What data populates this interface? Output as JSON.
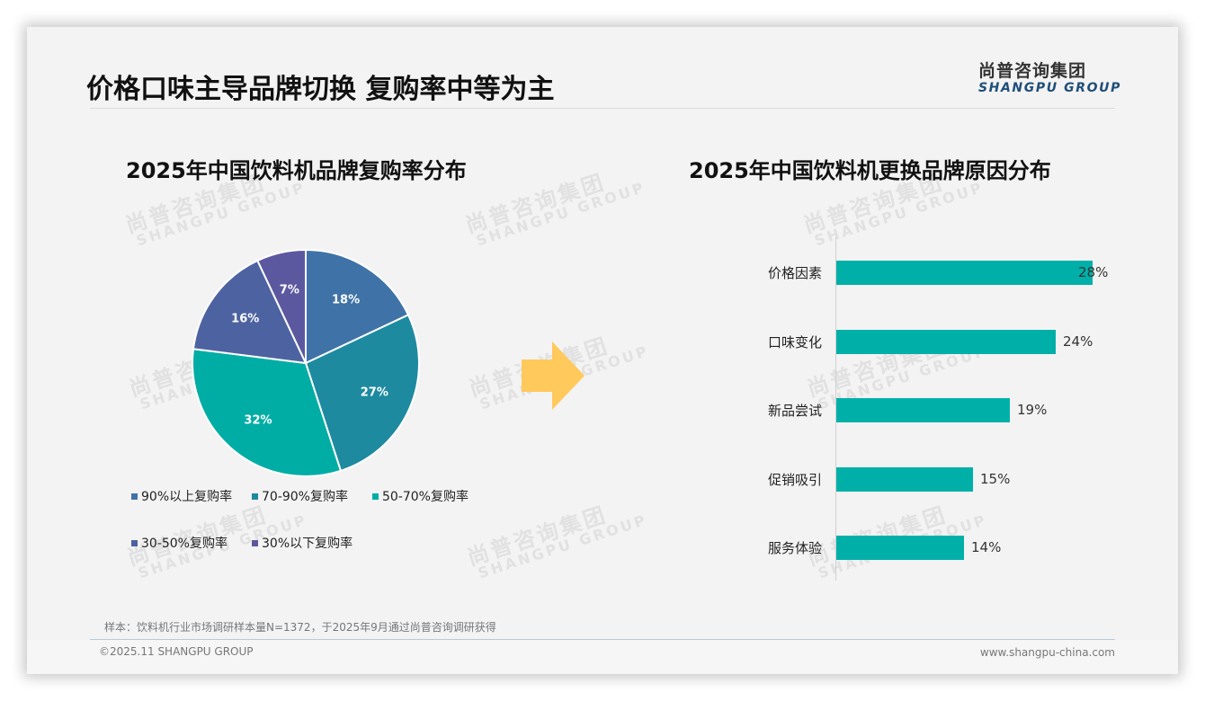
{
  "header": {
    "title": "价格口味主导品牌切换 复购率中等为主",
    "logo_cn": "尚普咨询集团",
    "logo_en": "SHANGPU GROUP"
  },
  "watermark": {
    "cn": "尚普咨询集团",
    "en": "SHANGPU GROUP"
  },
  "colors": {
    "pie": [
      "#3f73a8",
      "#1e8aa0",
      "#00ada5",
      "#4d63a1",
      "#5c58a0"
    ],
    "bar": "#00b0a8",
    "arrow": "#ffc95c",
    "title_text": "#111111"
  },
  "left_chart": {
    "title": "2025年中国饮料机品牌复购率分布",
    "slices": [
      {
        "label": "90%以上复购率",
        "value_label": "18%"
      },
      {
        "label": "70-90%复购率",
        "value_label": "27%"
      },
      {
        "label": "50-70%复购率",
        "value_label": "32%"
      },
      {
        "label": "30-50%复购率",
        "value_label": "16%"
      },
      {
        "label": "30%以下复购率",
        "value_label": "7%"
      }
    ]
  },
  "right_chart": {
    "title": "2025年中国饮料机更换品牌原因分布",
    "bars": [
      {
        "label": "价格因素",
        "value_label": "28%"
      },
      {
        "label": "口味变化",
        "value_label": "24%"
      },
      {
        "label": "新品尝试",
        "value_label": "19%"
      },
      {
        "label": "促销吸引",
        "value_label": "15%"
      },
      {
        "label": "服务体验",
        "value_label": "14%"
      }
    ]
  },
  "footer": {
    "note": "样本：饮料机行业市场调研样本量N=1372，于2025年9月通过尚普咨询调研获得",
    "copyright": "©2025.11 SHANGPU GROUP",
    "website": "www.shangpu-china.com"
  },
  "chart_data": [
    {
      "type": "pie",
      "title": "2025年中国饮料机品牌复购率分布",
      "categories": [
        "90%以上复购率",
        "70-90%复购率",
        "50-70%复购率",
        "30-50%复购率",
        "30%以下复购率"
      ],
      "values": [
        18,
        27,
        32,
        16,
        7
      ],
      "unit": "%",
      "legend_position": "bottom",
      "start_angle": "12 o'clock, clockwise"
    },
    {
      "type": "bar",
      "orientation": "horizontal",
      "title": "2025年中国饮料机更换品牌原因分布",
      "categories": [
        "价格因素",
        "口味变化",
        "新品尝试",
        "促销吸引",
        "服务体验"
      ],
      "values": [
        28,
        24,
        19,
        15,
        14
      ],
      "unit": "%",
      "xlabel": "",
      "ylabel": "",
      "xlim": [
        0,
        28
      ],
      "grid": false,
      "data_labels": true
    }
  ]
}
